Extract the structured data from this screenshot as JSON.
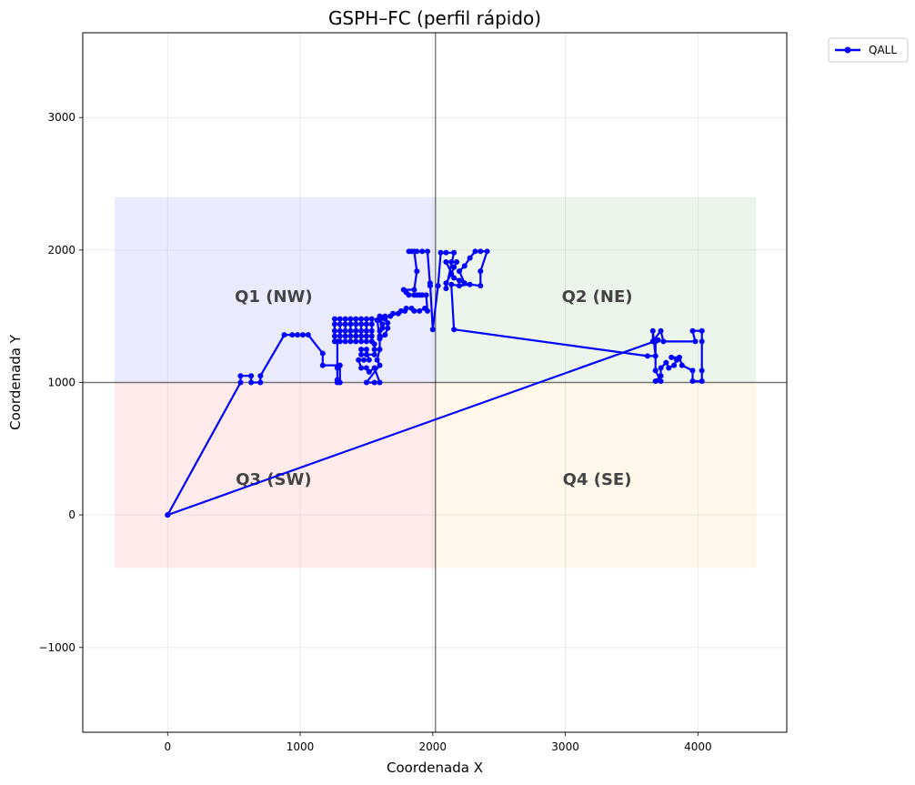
{
  "chart_data": {
    "type": "line",
    "title": "GSPH–FC (perfil rápido)",
    "xlabel": "Coordenada X",
    "ylabel": "Coordenada Y",
    "xlim": [
      -640,
      4670
    ],
    "ylim": [
      -1640,
      3640
    ],
    "xticks": [
      0,
      1000,
      2000,
      3000,
      4000
    ],
    "xtick_labels": [
      "0",
      "1000",
      "2000",
      "3000",
      "4000"
    ],
    "yticks": [
      -1000,
      0,
      1000,
      2000,
      3000
    ],
    "ytick_labels": [
      "−1000",
      "0",
      "1000",
      "2000",
      "3000"
    ],
    "grid": true,
    "legend_position": "outside-top-right",
    "reference_lines": {
      "x": 2020,
      "y": 1000
    },
    "quadrants": [
      {
        "label": "Q1 (NW)",
        "x0": -400,
        "x1": 2020,
        "y0": 1000,
        "y1": 2400,
        "color": "#0000ff",
        "label_x": 800,
        "label_y": 1650
      },
      {
        "label": "Q2 (NE)",
        "x0": 2020,
        "x1": 4440,
        "y0": 1000,
        "y1": 2400,
        "color": "#008000",
        "label_x": 3240,
        "label_y": 1650
      },
      {
        "label": "Q3 (SW)",
        "x0": -400,
        "x1": 2020,
        "y0": -400,
        "y1": 1000,
        "color": "#ff0000",
        "label_x": 800,
        "label_y": 270
      },
      {
        "label": "Q4 (SE)",
        "x0": 2020,
        "x1": 4440,
        "y0": -400,
        "y1": 1000,
        "color": "#ffa500",
        "label_x": 3240,
        "label_y": 270
      }
    ],
    "series": [
      {
        "name": "QALL",
        "color": "#0000ff",
        "points": [
          [
            0,
            0
          ],
          [
            550,
            1000
          ],
          [
            550,
            1050
          ],
          [
            630,
            1050
          ],
          [
            630,
            1000
          ],
          [
            700,
            1000
          ],
          [
            700,
            1050
          ],
          [
            880,
            1360
          ],
          [
            940,
            1360
          ],
          [
            980,
            1360
          ],
          [
            1020,
            1360
          ],
          [
            1060,
            1360
          ],
          [
            1170,
            1220
          ],
          [
            1170,
            1130
          ],
          [
            1300,
            1130
          ],
          [
            1300,
            1000
          ],
          [
            1280,
            1000
          ],
          [
            1280,
            1020
          ],
          [
            1280,
            1110
          ],
          [
            1280,
            1310
          ],
          [
            1260,
            1310
          ],
          [
            1260,
            1350
          ],
          [
            1260,
            1390
          ],
          [
            1260,
            1440
          ],
          [
            1260,
            1480
          ],
          [
            1300,
            1480
          ],
          [
            1300,
            1440
          ],
          [
            1300,
            1390
          ],
          [
            1300,
            1350
          ],
          [
            1300,
            1310
          ],
          [
            1340,
            1310
          ],
          [
            1340,
            1350
          ],
          [
            1340,
            1390
          ],
          [
            1340,
            1440
          ],
          [
            1340,
            1480
          ],
          [
            1380,
            1480
          ],
          [
            1380,
            1440
          ],
          [
            1380,
            1390
          ],
          [
            1380,
            1350
          ],
          [
            1380,
            1310
          ],
          [
            1420,
            1310
          ],
          [
            1420,
            1350
          ],
          [
            1420,
            1390
          ],
          [
            1420,
            1440
          ],
          [
            1420,
            1480
          ],
          [
            1460,
            1480
          ],
          [
            1460,
            1440
          ],
          [
            1460,
            1390
          ],
          [
            1460,
            1350
          ],
          [
            1460,
            1310
          ],
          [
            1500,
            1310
          ],
          [
            1500,
            1350
          ],
          [
            1500,
            1390
          ],
          [
            1500,
            1440
          ],
          [
            1500,
            1480
          ],
          [
            1540,
            1480
          ],
          [
            1540,
            1440
          ],
          [
            1540,
            1390
          ],
          [
            1540,
            1350
          ],
          [
            1540,
            1310
          ],
          [
            1560,
            1290
          ],
          [
            1560,
            1250
          ],
          [
            1560,
            1210
          ],
          [
            1500,
            1210
          ],
          [
            1460,
            1210
          ],
          [
            1460,
            1250
          ],
          [
            1500,
            1250
          ],
          [
            1520,
            1170
          ],
          [
            1480,
            1170
          ],
          [
            1440,
            1170
          ],
          [
            1460,
            1110
          ],
          [
            1500,
            1110
          ],
          [
            1520,
            1080
          ],
          [
            1560,
            1110
          ],
          [
            1600,
            1000
          ],
          [
            1560,
            1000
          ],
          [
            1500,
            1000
          ],
          [
            1600,
            1130
          ],
          [
            1580,
            1170
          ],
          [
            1600,
            1250
          ],
          [
            1600,
            1330
          ],
          [
            1640,
            1360
          ],
          [
            1660,
            1410
          ],
          [
            1660,
            1450
          ],
          [
            1640,
            1480
          ],
          [
            1620,
            1490
          ],
          [
            1600,
            1470
          ],
          [
            1620,
            1440
          ],
          [
            1620,
            1410
          ],
          [
            1600,
            1390
          ],
          [
            1600,
            1350
          ],
          [
            1580,
            1470
          ],
          [
            1600,
            1500
          ],
          [
            1640,
            1500
          ],
          [
            1680,
            1500
          ],
          [
            1700,
            1520
          ],
          [
            1740,
            1520
          ],
          [
            1760,
            1540
          ],
          [
            1790,
            1540
          ],
          [
            1800,
            1560
          ],
          [
            1840,
            1560
          ],
          [
            1860,
            1540
          ],
          [
            1900,
            1540
          ],
          [
            1940,
            1560
          ],
          [
            1960,
            1540
          ],
          [
            1950,
            1660
          ],
          [
            1920,
            1660
          ],
          [
            1900,
            1660
          ],
          [
            1880,
            1660
          ],
          [
            1860,
            1660
          ],
          [
            1820,
            1660
          ],
          [
            1800,
            1680
          ],
          [
            1780,
            1700
          ],
          [
            1860,
            1700
          ],
          [
            1880,
            1840
          ],
          [
            1860,
            1990
          ],
          [
            1820,
            1990
          ],
          [
            1840,
            1990
          ],
          [
            1880,
            1990
          ],
          [
            1920,
            1990
          ],
          [
            1960,
            1990
          ],
          [
            1980,
            1730
          ],
          [
            1980,
            1750
          ],
          [
            2000,
            1400
          ],
          [
            2040,
            1730
          ],
          [
            2060,
            1980
          ],
          [
            2100,
            1980
          ],
          [
            2160,
            1980
          ],
          [
            2100,
            1710
          ],
          [
            2100,
            1750
          ],
          [
            2140,
            1820
          ],
          [
            2160,
            1870
          ],
          [
            2180,
            1910
          ],
          [
            2140,
            1910
          ],
          [
            2100,
            1910
          ],
          [
            2160,
            1790
          ],
          [
            2200,
            1770
          ],
          [
            2240,
            1750
          ],
          [
            2200,
            1840
          ],
          [
            2240,
            1880
          ],
          [
            2280,
            1940
          ],
          [
            2320,
            1990
          ],
          [
            2360,
            1990
          ],
          [
            2410,
            1990
          ],
          [
            2360,
            1840
          ],
          [
            2360,
            1730
          ],
          [
            2280,
            1740
          ],
          [
            2200,
            1730
          ],
          [
            2140,
            1740
          ],
          [
            2160,
            1400
          ],
          [
            3620,
            1200
          ],
          [
            3680,
            1200
          ],
          [
            3660,
            1390
          ],
          [
            3660,
            1310
          ],
          [
            3720,
            1390
          ],
          [
            3740,
            1310
          ],
          [
            3980,
            1310
          ],
          [
            3960,
            1390
          ],
          [
            4030,
            1390
          ],
          [
            4030,
            1310
          ],
          [
            4030,
            1090
          ],
          [
            4030,
            1010
          ],
          [
            3960,
            1010
          ],
          [
            3960,
            1090
          ],
          [
            3880,
            1130
          ],
          [
            3860,
            1190
          ],
          [
            3800,
            1190
          ],
          [
            3840,
            1170
          ],
          [
            3820,
            1130
          ],
          [
            3780,
            1110
          ],
          [
            3760,
            1150
          ],
          [
            3720,
            1110
          ],
          [
            3720,
            1050
          ],
          [
            3680,
            1010
          ],
          [
            3720,
            1010
          ],
          [
            3680,
            1090
          ],
          [
            3680,
            1310
          ],
          [
            3700,
            1320
          ],
          [
            0,
            0
          ]
        ]
      }
    ]
  }
}
